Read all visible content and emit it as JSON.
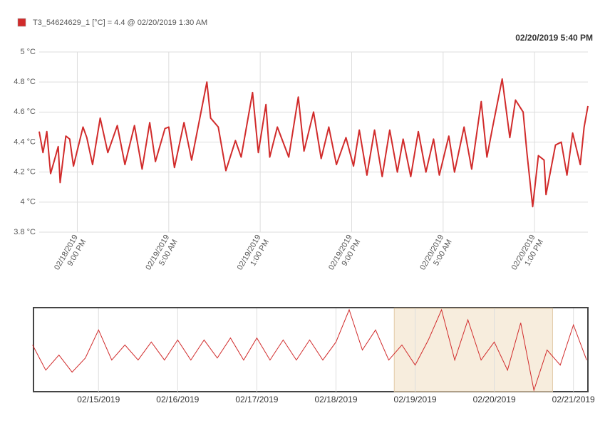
{
  "chart_data": [
    {
      "type": "line",
      "timestamp": "02/20/2019 5:40 PM",
      "series": [
        {
          "name": "T3_54624629_1 [°C] = 4.4 @ 02/20/2019 1:30 AM",
          "color": "#d12b2b",
          "x": [
            "02/18/2019 5:40 PM",
            "02/18/2019 6:00 PM",
            "02/18/2019 6:20 PM",
            "02/18/2019 6:40 PM",
            "02/18/2019 7:00 PM",
            "02/18/2019 7:20 PM",
            "02/18/2019 7:30 PM",
            "02/18/2019 8:00 PM",
            "02/18/2019 8:20 PM",
            "02/18/2019 8:40 PM",
            "02/18/2019 9:30 PM",
            "02/18/2019 9:50 PM",
            "02/18/2019 10:20 PM",
            "02/18/2019 11:00 PM",
            "02/18/2019 11:40 PM",
            "02/19/2019 12:30 AM",
            "02/19/2019 1:10 AM",
            "02/19/2019 2:00 AM",
            "02/19/2019 2:40 AM",
            "02/19/2019 3:20 AM",
            "02/19/2019 3:50 AM",
            "02/19/2019 4:40 AM",
            "02/19/2019 5:00 AM",
            "02/19/2019 5:30 AM",
            "02/19/2019 6:20 AM",
            "02/19/2019 7:00 AM",
            "02/19/2019 8:20 AM",
            "02/19/2019 8:40 AM",
            "02/19/2019 9:20 AM",
            "02/19/2019 10:00 AM",
            "02/19/2019 10:50 AM",
            "02/19/2019 11:20 AM",
            "02/19/2019 12:20 PM",
            "02/19/2019 12:50 PM",
            "02/19/2019 1:30 PM",
            "02/19/2019 1:50 PM",
            "02/19/2019 2:30 PM",
            "02/19/2019 3:30 PM",
            "02/19/2019 4:20 PM",
            "02/19/2019 4:50 PM",
            "02/19/2019 5:40 PM",
            "02/19/2019 6:20 PM",
            "02/19/2019 7:00 PM",
            "02/19/2019 7:40 PM",
            "02/19/2019 8:30 PM",
            "02/19/2019 9:10 PM",
            "02/19/2019 9:40 PM",
            "02/19/2019 10:20 PM",
            "02/19/2019 11:00 PM",
            "02/19/2019 11:40 PM",
            "02/20/2019 12:20 AM",
            "02/20/2019 1:00 AM",
            "02/20/2019 1:30 AM",
            "02/20/2019 2:10 AM",
            "02/20/2019 2:50 AM",
            "02/20/2019 3:30 AM",
            "02/20/2019 4:10 AM",
            "02/20/2019 4:40 AM",
            "02/20/2019 5:30 AM",
            "02/20/2019 6:00 AM",
            "02/20/2019 6:50 AM",
            "02/20/2019 7:30 AM",
            "02/20/2019 8:20 AM",
            "02/20/2019 8:50 AM",
            "02/20/2019 9:20 AM",
            "02/20/2019 10:10 AM",
            "02/20/2019 10:50 AM",
            "02/20/2019 11:20 AM",
            "02/20/2019 12:00 PM",
            "02/20/2019 12:20 PM",
            "02/20/2019 12:50 PM",
            "02/20/2019 1:20 PM",
            "02/20/2019 1:50 PM",
            "02/20/2019 2:00 PM",
            "02/20/2019 2:50 PM",
            "02/20/2019 3:20 PM",
            "02/20/2019 3:50 PM",
            "02/20/2019 4:20 PM",
            "02/20/2019 5:00 PM",
            "02/20/2019 5:20 PM",
            "02/20/2019 5:40 PM"
          ],
          "values": [
            4.47,
            4.33,
            4.47,
            4.19,
            4.28,
            4.37,
            4.13,
            4.44,
            4.42,
            4.24,
            4.5,
            4.43,
            4.25,
            4.56,
            4.33,
            4.51,
            4.25,
            4.51,
            4.22,
            4.53,
            4.27,
            4.49,
            4.5,
            4.23,
            4.53,
            4.28,
            4.8,
            4.56,
            4.5,
            4.21,
            4.41,
            4.3,
            4.73,
            4.33,
            4.65,
            4.3,
            4.5,
            4.3,
            4.7,
            4.34,
            4.6,
            4.29,
            4.5,
            4.25,
            4.43,
            4.24,
            4.48,
            4.18,
            4.48,
            4.17,
            4.48,
            4.2,
            4.42,
            4.17,
            4.47,
            4.2,
            4.42,
            4.18,
            4.44,
            4.2,
            4.5,
            4.22,
            4.67,
            4.3,
            4.5,
            4.82,
            4.43,
            4.68,
            4.6,
            4.33,
            3.97,
            4.31,
            4.28,
            4.05,
            4.38,
            4.4,
            4.18,
            4.46,
            4.25,
            4.5,
            4.64
          ]
        }
      ],
      "xlim": [
        "02/18/2019 5:40 PM",
        "02/20/2019 5:40 PM"
      ],
      "xticks": [
        "02/18/2019 9:00 PM",
        "02/19/2019 5:00 AM",
        "02/19/2019 1:00 PM",
        "02/19/2019 9:00 PM",
        "02/20/2019 5:00 AM",
        "02/20/2019 1:00 PM"
      ],
      "ylim": [
        3.8,
        5
      ],
      "yticks": [
        {
          "value": 3.8,
          "label": "3.8 °C"
        },
        {
          "value": 4,
          "label": "4 °C"
        },
        {
          "value": 4.2,
          "label": "4.2 °C"
        },
        {
          "value": 4.4,
          "label": "4.4 °C"
        },
        {
          "value": 4.6,
          "label": "4.6 °C"
        },
        {
          "value": 4.8,
          "label": "4.8 °C"
        },
        {
          "value": 5,
          "label": "5 °C"
        }
      ],
      "grid": true
    },
    {
      "type": "navigator",
      "series": [
        {
          "color": "#d12b2b",
          "x": [
            "02/14/2019 4:00 AM",
            "02/14/2019 8:00 AM",
            "02/14/2019 12:00 PM",
            "02/14/2019 4:00 PM",
            "02/14/2019 8:00 PM",
            "02/15/2019 12:00 AM",
            "02/15/2019 4:00 AM",
            "02/15/2019 8:00 AM",
            "02/15/2019 12:00 PM",
            "02/15/2019 4:00 PM",
            "02/15/2019 8:00 PM",
            "02/16/2019 12:00 AM",
            "02/16/2019 4:00 AM",
            "02/16/2019 8:00 AM",
            "02/16/2019 12:00 PM",
            "02/16/2019 4:00 PM",
            "02/16/2019 8:00 PM",
            "02/17/2019 12:00 AM",
            "02/17/2019 4:00 AM",
            "02/17/2019 8:00 AM",
            "02/17/2019 12:00 PM",
            "02/17/2019 4:00 PM",
            "02/17/2019 8:00 PM",
            "02/18/2019 12:00 AM",
            "02/18/2019 4:00 AM",
            "02/18/2019 8:00 AM",
            "02/18/2019 12:00 PM",
            "02/18/2019 4:00 PM",
            "02/18/2019 8:00 PM",
            "02/19/2019 12:00 AM",
            "02/19/2019 4:00 AM",
            "02/19/2019 8:00 AM",
            "02/19/2019 12:00 PM",
            "02/19/2019 4:00 PM",
            "02/19/2019 8:00 PM",
            "02/20/2019 12:00 AM",
            "02/20/2019 4:00 AM",
            "02/20/2019 8:00 AM",
            "02/20/2019 12:00 PM",
            "02/20/2019 4:00 PM",
            "02/20/2019 8:00 PM",
            "02/21/2019 12:00 AM",
            "02/21/2019 4:00 AM"
          ],
          "values": [
            4.45,
            4.2,
            4.35,
            4.18,
            4.32,
            4.6,
            4.3,
            4.45,
            4.3,
            4.48,
            4.3,
            4.5,
            4.3,
            4.5,
            4.32,
            4.52,
            4.3,
            4.52,
            4.3,
            4.5,
            4.3,
            4.5,
            4.3,
            4.48,
            4.8,
            4.4,
            4.6,
            4.3,
            4.45,
            4.25,
            4.5,
            4.8,
            4.3,
            4.7,
            4.3,
            4.48,
            4.2,
            4.67,
            4.0,
            4.4,
            4.25,
            4.65,
            4.3
          ]
        }
      ],
      "xlim": [
        "02/14/2019 4:30 AM",
        "02/21/2019 4:10 AM"
      ],
      "xticks": [
        "02/15/2019",
        "02/16/2019",
        "02/17/2019",
        "02/18/2019",
        "02/19/2019",
        "02/20/2019",
        "02/21/2019"
      ]
    }
  ]
}
